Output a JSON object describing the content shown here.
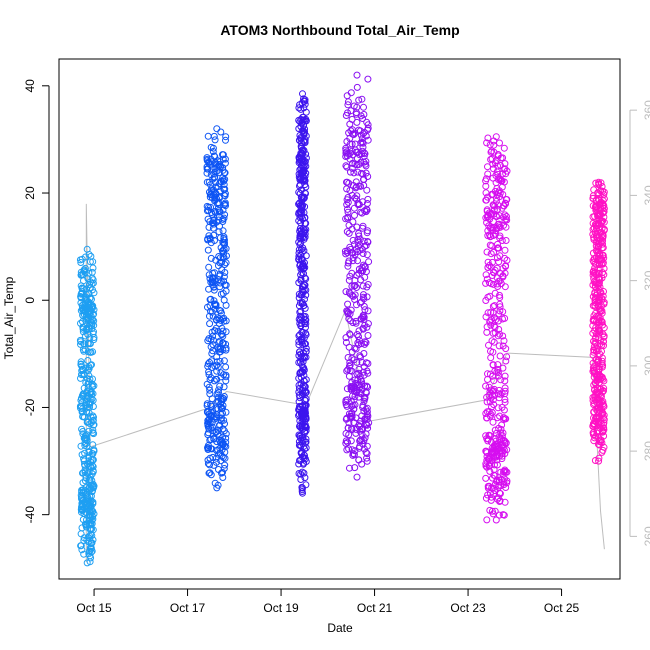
{
  "chart_data": {
    "type": "scatter",
    "title": "ATOM3 Northbound Total_Air_Temp",
    "xlabel": "Date",
    "ylabel": "Total_Air_Temp",
    "x_ticks": [
      "Oct 15",
      "Oct 17",
      "Oct 19",
      "Oct 21",
      "Oct 23",
      "Oct 25"
    ],
    "xlim": [
      "2016-10-14 06:00",
      "2016-10-26 06:00"
    ],
    "ylim": [
      -52,
      45
    ],
    "y_ticks": [
      -40,
      -20,
      0,
      20,
      40
    ],
    "y2_ticks": [
      260,
      280,
      300,
      320,
      340,
      360
    ],
    "y2lim": [
      250,
      372
    ],
    "grid": false,
    "legend": "none",
    "series": [
      {
        "date_start": "2016-10-14 17:00",
        "date_end": "2016-10-15 00:00",
        "ymin": -49,
        "ymax": 9.5,
        "color": "#1e9ff2"
      },
      {
        "date_start": "2016-10-17 10:00",
        "date_end": "2016-10-17 20:00",
        "ymin": -35,
        "ymax": 32,
        "color": "#0e55f4"
      },
      {
        "date_start": "2016-10-19 09:00",
        "date_end": "2016-10-19 13:00",
        "ymin": -36,
        "ymax": 38.5,
        "color": "#3d15ee"
      },
      {
        "date_start": "2016-10-20 09:00",
        "date_end": "2016-10-20 21:00",
        "ymin": -33,
        "ymax": 42,
        "color": "#8a10f2"
      },
      {
        "date_start": "2016-10-23 09:00",
        "date_end": "2016-10-23 20:00",
        "ymin": -41,
        "ymax": 30.5,
        "color": "#d60ef0"
      },
      {
        "date_start": "2016-10-25 16:00",
        "date_end": "2016-10-25 22:00",
        "ymin": -30,
        "ymax": 22,
        "color": "#ff12c4"
      }
    ],
    "secondary_line": {
      "color": "#bdbdbd",
      "points": [
        [
          "2016-10-14 20:00",
          254
        ],
        [
          "2016-10-14 20:00",
          338
        ],
        [
          "2016-10-14 22:00",
          281
        ],
        [
          "2016-10-17 10:00",
          290
        ],
        [
          "2016-10-17 20:00",
          294
        ],
        [
          "2016-10-19 10:00",
          291
        ],
        [
          "2016-10-19 13:00",
          291
        ],
        [
          "2016-10-20 09:00",
          313
        ],
        [
          "2016-10-20 21:00",
          287
        ],
        [
          "2016-10-23 09:00",
          292
        ],
        [
          "2016-10-23 20:00",
          303
        ],
        [
          "2016-10-25 16:00",
          302
        ],
        [
          "2016-10-25 20:00",
          266
        ],
        [
          "2016-10-25 22:00",
          257
        ]
      ]
    }
  }
}
